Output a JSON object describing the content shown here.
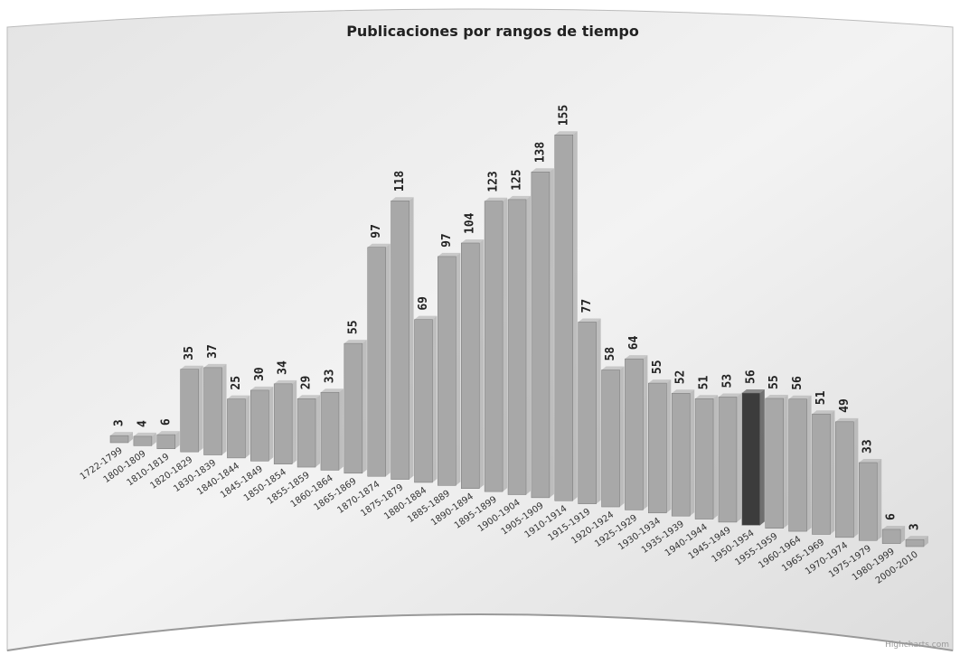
{
  "chart_data": {
    "type": "bar",
    "title": "Publicaciones por rangos de tiempo",
    "categories": [
      "1722-1799",
      "1800-1809",
      "1810-1819",
      "1820-1829",
      "1830-1839",
      "1840-1844",
      "1845-1849",
      "1850-1854",
      "1855-1859",
      "1860-1864",
      "1865-1869",
      "1870-1874",
      "1875-1879",
      "1880-1884",
      "1885-1889",
      "1890-1894",
      "1895-1899",
      "1900-1904",
      "1905-1909",
      "1910-1914",
      "1915-1919",
      "1920-1924",
      "1925-1929",
      "1930-1934",
      "1935-1939",
      "1940-1944",
      "1945-1949",
      "1950-1954",
      "1955-1959",
      "1960-1964",
      "1965-1969",
      "1970-1974",
      "1975-1979",
      "1980-1999",
      "2000-2010"
    ],
    "values": [
      3,
      4,
      6,
      35,
      37,
      25,
      30,
      34,
      29,
      33,
      55,
      97,
      118,
      69,
      97,
      104,
      123,
      125,
      138,
      155,
      77,
      58,
      64,
      55,
      52,
      51,
      53,
      56,
      55,
      56,
      51,
      49,
      33,
      6,
      3
    ],
    "colors": [
      "#a8a8a8",
      "#a8a8a8",
      "#a8a8a8",
      "#a8a8a8",
      "#a8a8a8",
      "#a8a8a8",
      "#a8a8a8",
      "#a8a8a8",
      "#a8a8a8",
      "#a8a8a8",
      "#a8a8a8",
      "#a8a8a8",
      "#a8a8a8",
      "#a8a8a8",
      "#a8a8a8",
      "#a8a8a8",
      "#a8a8a8",
      "#a8a8a8",
      "#a8a8a8",
      "#a8a8a8",
      "#a8a8a8",
      "#a8a8a8",
      "#a8a8a8",
      "#a8a8a8",
      "#a8a8a8",
      "#a8a8a8",
      "#a8a8a8",
      "#3c3c3c",
      "#a8a8a8",
      "#a8a8a8",
      "#a8a8a8",
      "#a8a8a8",
      "#a8a8a8",
      "#a8a8a8",
      "#a8a8a8"
    ],
    "credit": "Highcharts.com"
  }
}
